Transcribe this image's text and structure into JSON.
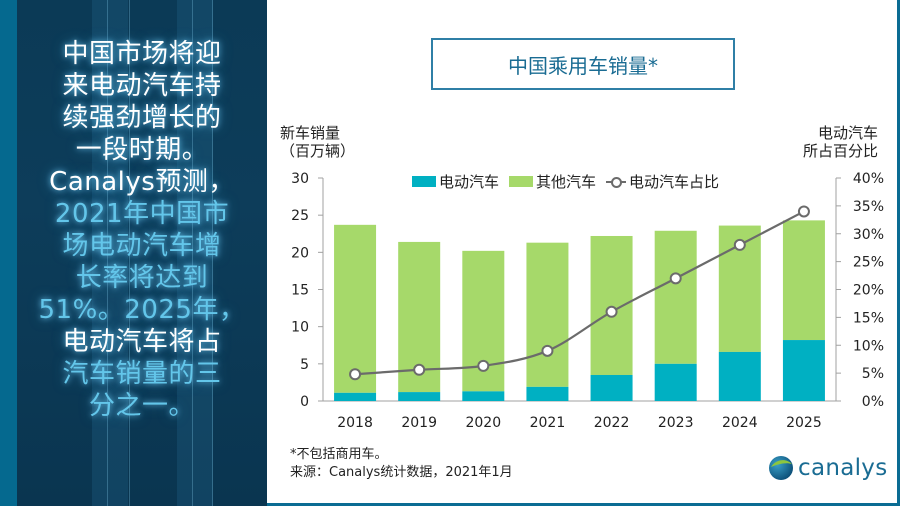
{
  "headline": {
    "lines": [
      {
        "text": "中国市场将迎",
        "color": "white"
      },
      {
        "text": "来电动汽车持",
        "color": "white"
      },
      {
        "text": "续强劲增长的",
        "color": "white"
      },
      {
        "text": "一段时期。",
        "color": "white"
      },
      {
        "text": "Canalys预测，",
        "color": "white"
      },
      {
        "text": "2021年中国市",
        "color": "cyan"
      },
      {
        "text": "场电动汽车增",
        "color": "cyan"
      },
      {
        "text": "长率将达到",
        "color": "cyan"
      },
      {
        "text": "51%。2025年，",
        "color": "cyan"
      },
      {
        "text": "电动汽车将占",
        "color": "white"
      },
      {
        "text": "汽车销量的三",
        "color": "cyan"
      },
      {
        "text": "分之一。",
        "color": "cyan"
      }
    ]
  },
  "colors": {
    "ev": "#00b0c2",
    "other": "#a6d96a",
    "line": "#6b6b6b",
    "accent": "#1a6c93"
  },
  "footnote": {
    "note": "*不包括商用车。",
    "source": "来源：Canalys统计数据，2021年1月"
  },
  "logo": {
    "text": "canalys"
  },
  "chart_data": {
    "type": "bar",
    "stacked": true,
    "title": "中国乘用车销量*",
    "ylabel_left": [
      "新车销量",
      "（百万辆）"
    ],
    "ylabel_right": [
      "电动汽车",
      "所占百分比"
    ],
    "categories": [
      "2018",
      "2019",
      "2020",
      "2021",
      "2022",
      "2023",
      "2024",
      "2025"
    ],
    "ylim": [
      0,
      30
    ],
    "y_ticks": [
      "0",
      "5",
      "10",
      "15",
      "20",
      "25",
      "30"
    ],
    "y2lim": [
      0,
      40
    ],
    "y2_ticks": [
      "0%",
      "5%",
      "10%",
      "15%",
      "20%",
      "25%",
      "30%",
      "35%",
      "40%"
    ],
    "legend": [
      "电动汽车",
      "其他汽车",
      "电动汽车占比"
    ],
    "legend_position": "top",
    "grid": false,
    "series": [
      {
        "name": "电动汽车",
        "type": "bar",
        "axis": "left",
        "values": [
          1.1,
          1.2,
          1.3,
          1.9,
          3.5,
          5.0,
          6.6,
          8.2
        ]
      },
      {
        "name": "其他汽车",
        "type": "bar",
        "axis": "left",
        "values": [
          22.6,
          20.2,
          18.9,
          19.4,
          18.7,
          17.9,
          17.0,
          16.1
        ]
      },
      {
        "name": "电动汽车占比",
        "type": "line",
        "axis": "right",
        "unit": "%",
        "values": [
          4.8,
          5.6,
          6.3,
          9.0,
          16.0,
          22.0,
          28.0,
          34.0
        ]
      }
    ]
  }
}
